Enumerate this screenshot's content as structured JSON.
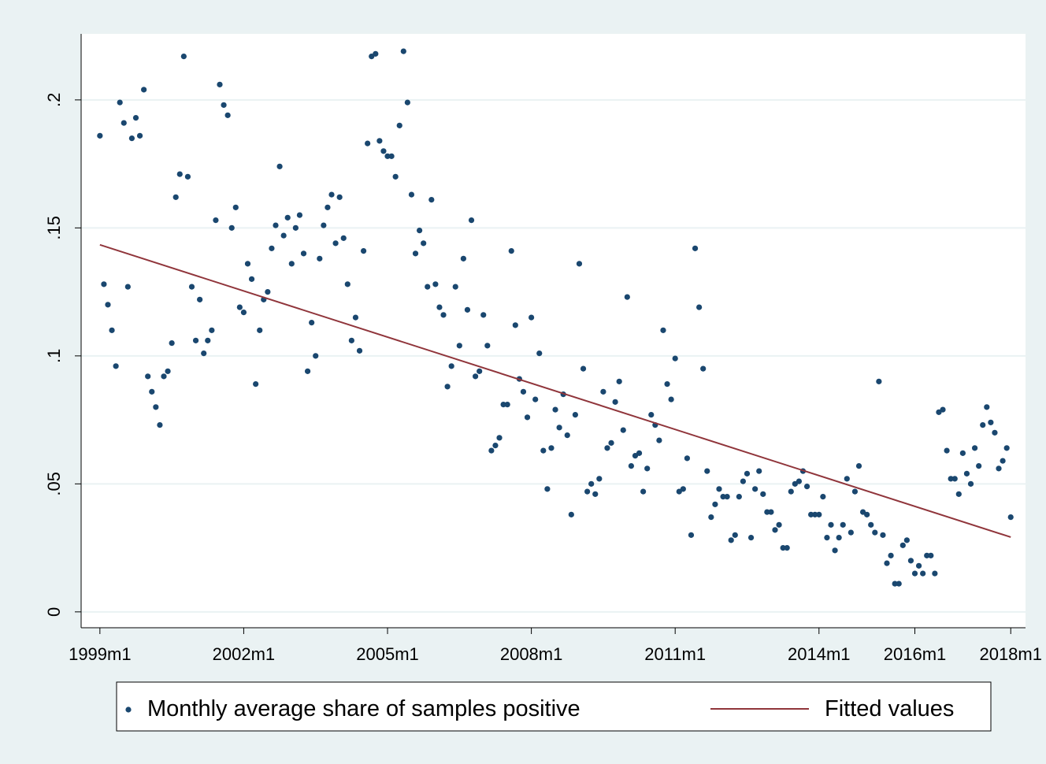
{
  "chart_data": {
    "type": "scatter",
    "x": [
      468,
      469,
      470,
      471,
      472,
      473,
      474,
      475,
      476,
      477,
      478,
      479,
      480,
      481,
      482,
      483,
      484,
      485,
      486,
      487,
      488,
      489,
      490,
      491,
      492,
      493,
      494,
      495,
      496,
      497,
      498,
      499,
      500,
      501,
      502,
      503,
      504,
      505,
      506,
      507,
      508,
      509,
      510,
      511,
      512,
      513,
      514,
      515,
      516,
      517,
      518,
      519,
      520,
      521,
      522,
      523,
      524,
      525,
      526,
      527,
      528,
      529,
      530,
      531,
      532,
      533,
      534,
      535,
      536,
      537,
      538,
      539,
      540,
      541,
      542,
      543,
      544,
      545,
      546,
      547,
      548,
      549,
      550,
      551,
      552,
      553,
      554,
      555,
      556,
      557,
      558,
      559,
      560,
      561,
      562,
      563,
      564,
      565,
      566,
      567,
      568,
      569,
      570,
      571,
      572,
      573,
      574,
      575,
      576,
      577,
      578,
      579,
      580,
      581,
      582,
      583,
      584,
      585,
      586,
      587,
      588,
      589,
      590,
      591,
      592,
      593,
      594,
      595,
      596,
      597,
      598,
      599,
      600,
      601,
      602,
      603,
      604,
      605,
      606,
      607,
      608,
      609,
      610,
      611,
      612,
      613,
      614,
      615,
      616,
      617,
      618,
      619,
      620,
      621,
      622,
      623,
      624,
      625,
      626,
      627,
      628,
      629,
      630,
      631,
      632,
      633,
      634,
      635,
      636,
      637,
      638,
      639,
      640,
      641,
      642,
      643,
      644,
      645,
      646,
      647,
      648,
      649,
      650,
      651,
      652,
      653,
      654,
      655,
      656,
      657,
      658,
      659,
      660,
      661,
      662,
      663,
      664,
      665,
      666,
      667,
      668,
      669,
      670,
      671,
      672,
      673,
      674,
      675,
      676,
      677,
      678,
      679,
      680,
      681,
      682,
      683,
      684,
      685,
      686,
      687,
      688,
      689,
      690,
      691,
      692,
      693,
      694,
      695,
      696
    ],
    "series": [
      {
        "name": "Monthly average share of samples positive",
        "color": "#1a476f",
        "values": [
          0.186,
          0.128,
          0.12,
          0.11,
          0.096,
          0.199,
          0.191,
          0.127,
          0.185,
          0.193,
          0.186,
          0.204,
          0.092,
          0.086,
          0.08,
          0.073,
          0.092,
          0.094,
          0.105,
          0.162,
          0.171,
          0.217,
          0.17,
          0.127,
          0.106,
          0.122,
          0.101,
          0.106,
          0.11,
          0.153,
          0.206,
          0.198,
          0.194,
          0.15,
          0.158,
          0.119,
          0.117,
          0.136,
          0.13,
          0.089,
          0.11,
          0.122,
          0.125,
          0.142,
          0.151,
          0.174,
          0.147,
          0.154,
          0.136,
          0.15,
          0.155,
          0.14,
          0.094,
          0.113,
          0.1,
          0.138,
          0.151,
          0.158,
          0.163,
          0.144,
          0.162,
          0.146,
          0.128,
          0.106,
          0.115,
          0.102,
          0.141,
          0.183,
          0.217,
          0.218,
          0.184,
          0.18,
          0.178,
          0.178,
          0.17,
          0.19,
          0.219,
          0.199,
          0.163,
          0.14,
          0.149,
          0.144,
          0.127,
          0.161,
          0.128,
          0.119,
          0.116,
          0.088,
          0.096,
          0.127,
          0.104,
          0.138,
          0.118,
          0.153,
          0.092,
          0.094,
          0.116,
          0.104,
          0.063,
          0.065,
          0.068,
          0.081,
          0.081,
          0.141,
          0.112,
          0.091,
          0.086,
          0.076,
          0.115,
          0.083,
          0.101,
          0.063,
          0.048,
          0.064,
          0.079,
          0.072,
          0.085,
          0.069,
          0.038,
          0.077,
          0.136,
          0.095,
          0.047,
          0.05,
          0.046,
          0.052,
          0.086,
          0.064,
          0.066,
          0.082,
          0.09,
          0.071,
          0.123,
          0.057,
          0.061,
          0.062,
          0.047,
          0.056,
          0.077,
          0.073,
          0.067,
          0.11,
          0.089,
          0.083,
          0.099,
          0.047,
          0.048,
          0.06,
          0.03,
          0.142,
          0.119,
          0.095,
          0.055,
          0.037,
          0.042,
          0.048,
          0.045,
          0.045,
          0.028,
          0.03,
          0.045,
          0.051,
          0.054,
          0.029,
          0.048,
          0.055,
          0.046,
          0.039,
          0.039,
          0.032,
          0.034,
          0.025,
          0.025,
          0.047,
          0.05,
          0.051,
          0.055,
          0.049,
          0.038,
          0.038,
          0.038,
          0.045,
          0.029,
          0.034,
          0.024,
          0.029,
          0.034,
          0.052,
          0.031,
          0.047,
          0.057,
          0.039,
          0.038,
          0.034,
          0.031,
          0.09,
          0.03,
          0.019,
          0.022,
          0.011,
          0.011,
          0.026,
          0.028,
          0.02,
          0.015,
          0.018,
          0.015,
          0.022,
          0.022,
          0.015,
          0.078,
          0.079,
          0.063,
          0.052,
          0.052,
          0.046,
          0.062,
          0.054,
          0.05,
          0.064,
          0.057,
          0.073,
          0.08,
          0.074,
          0.07,
          0.056,
          0.059,
          0.064,
          0.037
        ]
      },
      {
        "name": "Fitted values",
        "color": "#90353b",
        "type": "line",
        "x": [
          468,
          696
        ],
        "values": [
          0.1434,
          0.0292
        ]
      }
    ],
    "xlim": [
      463.3,
      699.7
    ],
    "ylim": [
      -0.0062,
      0.2258
    ],
    "xticks": [
      {
        "value": 468,
        "label": "1999m1"
      },
      {
        "value": 504,
        "label": "2002m1"
      },
      {
        "value": 540,
        "label": "2005m1"
      },
      {
        "value": 576,
        "label": "2008m1"
      },
      {
        "value": 612,
        "label": "2011m1"
      },
      {
        "value": 648,
        "label": "2014m1"
      },
      {
        "value": 672,
        "label": "2016m1"
      },
      {
        "value": 696,
        "label": "2018m1"
      }
    ],
    "yticks": [
      0,
      {
        "value": 0.05,
        "label": ".05"
      },
      {
        "value": 0.1,
        "label": ".1"
      },
      {
        "value": 0.15,
        "label": ".15"
      },
      {
        "value": 0.2,
        "label": ".2"
      }
    ],
    "grid": true
  }
}
